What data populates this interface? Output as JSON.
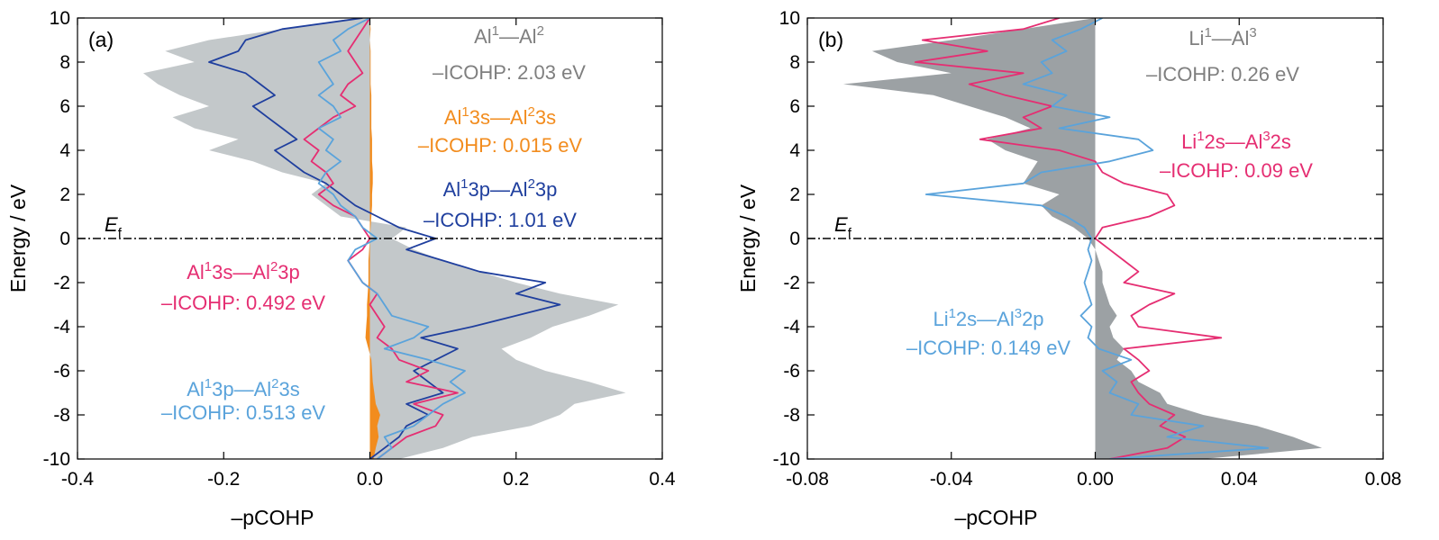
{
  "colors": {
    "total": "#c3c8ca",
    "total_b": "#9ca1a4",
    "ss": "#f28c1e",
    "pp": "#1f3f9e",
    "sp": "#e52e72",
    "ps": "#5aa3db",
    "axis": "#000000",
    "label_gray": "#7f7f7f"
  },
  "chart_data": [
    {
      "type": "area",
      "panel_label": "(a)",
      "xlabel": "–pCOHP",
      "ylabel": "Energy / eV",
      "xlim": [
        -0.4,
        0.4
      ],
      "ylim": [
        -10,
        10
      ],
      "xticks": [
        -0.4,
        -0.2,
        0.0,
        0.2,
        0.4
      ],
      "xtick_labels": [
        "-0.4",
        "-0.2",
        "0.0",
        "0.2",
        "0.4"
      ],
      "yticks": [
        10,
        8,
        6,
        4,
        2,
        0,
        -2,
        -4,
        -6,
        -8,
        -10
      ],
      "ytick_labels": [
        "10",
        "8",
        "6",
        "4",
        "2",
        "0",
        "-2",
        "-4",
        "-6",
        "-8",
        "-10"
      ],
      "fermi_level": {
        "label": "E",
        "subscript": "f",
        "energy": 0
      },
      "annotations": [
        {
          "key": "total",
          "line1": [
            "Al",
            "1",
            "—Al",
            "2"
          ],
          "line2": "–ICOHP: 2.03 eV"
        },
        {
          "key": "ss",
          "line1": [
            "Al",
            "1",
            "3s—Al",
            "2",
            "3s"
          ],
          "line2": "–ICOHP: 0.015 eV"
        },
        {
          "key": "pp",
          "line1": [
            "Al",
            "1",
            "3p—Al",
            "2",
            "3p"
          ],
          "line2": "–ICOHP: 1.01 eV"
        },
        {
          "key": "sp",
          "line1": [
            "Al",
            "1",
            "3s—Al",
            "2",
            "3p"
          ],
          "line2": "–ICOHP: 0.492 eV"
        },
        {
          "key": "ps",
          "line1": [
            "Al",
            "1",
            "3p—Al",
            "2",
            "3s"
          ],
          "line2": "–ICOHP: 0.513 eV"
        }
      ],
      "energy": [
        -10,
        -9.5,
        -9,
        -8.5,
        -8,
        -7.5,
        -7,
        -6.5,
        -6,
        -5.5,
        -5,
        -4.5,
        -4,
        -3.5,
        -3,
        -2.5,
        -2,
        -1.5,
        -1,
        -0.5,
        0,
        0.5,
        1,
        1.5,
        2,
        2.5,
        3,
        3.5,
        4,
        4.5,
        5,
        5.5,
        6,
        6.5,
        7,
        7.5,
        8,
        8.5,
        9,
        9.5,
        10
      ],
      "series": [
        {
          "key": "total",
          "style": "fill",
          "values": [
            0.04,
            0.1,
            0.14,
            0.22,
            0.26,
            0.28,
            0.35,
            0.3,
            0.24,
            0.2,
            0.18,
            0.22,
            0.25,
            0.3,
            0.34,
            0.26,
            0.2,
            0.15,
            0.1,
            0.06,
            0.03,
            0.05,
            -0.04,
            -0.06,
            -0.08,
            -0.06,
            -0.12,
            -0.16,
            -0.22,
            -0.18,
            -0.24,
            -0.27,
            -0.22,
            -0.26,
            -0.29,
            -0.31,
            -0.24,
            -0.28,
            -0.22,
            -0.12,
            -0.02
          ]
        },
        {
          "key": "ss",
          "style": "fill",
          "values": [
            0.005,
            0.008,
            0.012,
            0.01,
            0.014,
            0.008,
            0.006,
            0.004,
            0.003,
            0.002,
            -0.002,
            -0.006,
            -0.005,
            -0.004,
            -0.004,
            -0.003,
            -0.002,
            -0.002,
            -0.002,
            -0.001,
            0.0,
            0.001,
            0.002,
            0.003,
            0.003,
            0.004,
            0.004,
            0.003,
            0.003,
            0.003,
            0.002,
            0.002,
            0.002,
            0.002,
            0.001,
            0.001,
            0.001,
            0.001,
            0.0,
            0.001,
            0.0
          ]
        },
        {
          "key": "pp",
          "style": "line",
          "values": [
            0.0,
            0.02,
            0.04,
            0.05,
            0.08,
            0.05,
            0.1,
            0.08,
            0.06,
            0.09,
            0.12,
            0.07,
            0.14,
            0.2,
            0.26,
            0.2,
            0.24,
            0.15,
            0.1,
            0.05,
            0.09,
            0.04,
            0.01,
            -0.02,
            -0.04,
            -0.06,
            -0.09,
            -0.11,
            -0.13,
            -0.1,
            -0.12,
            -0.14,
            -0.16,
            -0.13,
            -0.15,
            -0.17,
            -0.22,
            -0.18,
            -0.17,
            -0.12,
            -0.01
          ]
        },
        {
          "key": "sp",
          "style": "line",
          "values": [
            0.01,
            0.03,
            0.05,
            0.09,
            0.1,
            0.06,
            0.12,
            0.05,
            0.08,
            0.04,
            0.03,
            0.01,
            0.02,
            0.01,
            0.0,
            0.01,
            -0.01,
            -0.02,
            -0.03,
            -0.01,
            0.0,
            -0.01,
            -0.02,
            -0.05,
            -0.07,
            -0.05,
            -0.06,
            -0.08,
            -0.07,
            -0.09,
            -0.07,
            -0.05,
            -0.02,
            -0.04,
            -0.03,
            -0.01,
            -0.02,
            -0.03,
            -0.02,
            -0.01,
            0.0
          ]
        },
        {
          "key": "ps",
          "style": "line",
          "values": [
            0.01,
            0.03,
            0.02,
            0.06,
            0.08,
            0.1,
            0.13,
            0.11,
            0.13,
            0.08,
            0.02,
            0.06,
            0.08,
            0.03,
            0.02,
            0.01,
            -0.01,
            -0.02,
            -0.03,
            -0.02,
            0.01,
            -0.01,
            -0.02,
            -0.04,
            -0.05,
            -0.07,
            -0.06,
            -0.04,
            -0.06,
            -0.05,
            -0.07,
            -0.04,
            -0.05,
            -0.07,
            -0.05,
            -0.06,
            -0.07,
            -0.04,
            -0.05,
            -0.03,
            0.0
          ]
        }
      ]
    },
    {
      "type": "area",
      "panel_label": "(b)",
      "xlabel": "–pCOHP",
      "ylabel": "Energy / eV",
      "xlim": [
        -0.08,
        0.08
      ],
      "ylim": [
        -10,
        10
      ],
      "xticks": [
        -0.08,
        -0.04,
        0.0,
        0.04,
        0.08
      ],
      "xtick_labels": [
        "-0.08",
        "-0.04",
        "0.00",
        "0.04",
        "0.08"
      ],
      "yticks": [
        10,
        8,
        6,
        4,
        2,
        0,
        -2,
        -4,
        -6,
        -8,
        -10
      ],
      "ytick_labels": [
        "10",
        "8",
        "6",
        "4",
        "2",
        "0",
        "-2",
        "-4",
        "-6",
        "-8",
        "-10"
      ],
      "fermi_level": {
        "label": "E",
        "subscript": "f",
        "energy": 0
      },
      "annotations": [
        {
          "key": "total_b",
          "line1": [
            "Li",
            "1",
            "—Al",
            "3"
          ],
          "line2": "–ICOHP: 0.26 eV"
        },
        {
          "key": "sp",
          "line1": [
            "Li",
            "1",
            "2s—Al",
            "3",
            "2s"
          ],
          "line2": "–ICOHP: 0.09 eV"
        },
        {
          "key": "ps",
          "line1": [
            "Li",
            "1",
            "2s—Al",
            "3",
            "2p"
          ],
          "line2": "–ICOHP: 0.149 eV"
        }
      ],
      "energy": [
        -10,
        -9.5,
        -9,
        -8.5,
        -8,
        -7.5,
        -7,
        -6.5,
        -6,
        -5.5,
        -5,
        -4.5,
        -4,
        -3.5,
        -3,
        -2.5,
        -2,
        -1.5,
        -1,
        -0.5,
        0,
        0.5,
        1,
        1.5,
        2,
        2.5,
        3,
        3.5,
        4,
        4.5,
        5,
        5.5,
        6,
        6.5,
        7,
        7.5,
        8,
        8.5,
        9,
        9.5,
        10
      ],
      "series": [
        {
          "key": "total_b",
          "style": "fill",
          "values": [
            0.03,
            0.063,
            0.055,
            0.045,
            0.03,
            0.02,
            0.018,
            0.012,
            0.01,
            0.006,
            0.008,
            0.005,
            0.004,
            0.006,
            0.004,
            0.003,
            0.002,
            0.002,
            0.001,
            0.0,
            -0.002,
            -0.006,
            -0.012,
            -0.015,
            -0.01,
            -0.02,
            -0.018,
            -0.016,
            -0.025,
            -0.03,
            -0.018,
            -0.025,
            -0.035,
            -0.045,
            -0.07,
            -0.04,
            -0.055,
            -0.062,
            -0.04,
            -0.02,
            0.0
          ]
        },
        {
          "key": "sp",
          "style": "line",
          "values": [
            0.004,
            0.02,
            0.025,
            0.018,
            0.022,
            0.015,
            0.012,
            0.01,
            0.015,
            0.012,
            0.008,
            0.035,
            0.012,
            0.01,
            0.015,
            0.022,
            0.008,
            0.012,
            0.008,
            0.004,
            0.0,
            0.002,
            0.015,
            0.022,
            0.02,
            0.008,
            0.002,
            0.0,
            -0.01,
            -0.032,
            -0.015,
            -0.02,
            -0.012,
            -0.025,
            -0.035,
            -0.02,
            -0.05,
            -0.03,
            -0.048,
            -0.02,
            -0.01
          ]
        },
        {
          "key": "ps",
          "style": "line",
          "values": [
            0.004,
            0.048,
            0.02,
            0.03,
            0.01,
            0.012,
            0.004,
            0.006,
            0.002,
            0.01,
            0.001,
            -0.002,
            -0.001,
            -0.004,
            -0.001,
            -0.002,
            -0.003,
            -0.002,
            -0.001,
            -0.002,
            -0.001,
            -0.003,
            -0.008,
            -0.015,
            -0.047,
            -0.02,
            -0.015,
            0.004,
            0.016,
            0.012,
            -0.01,
            0.004,
            -0.012,
            -0.008,
            -0.02,
            -0.012,
            -0.015,
            -0.008,
            -0.012,
            -0.004,
            0.002
          ]
        }
      ]
    }
  ]
}
